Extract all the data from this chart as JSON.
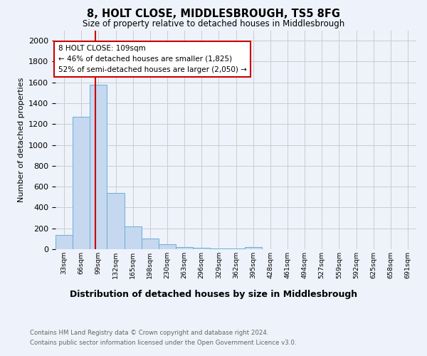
{
  "title": "8, HOLT CLOSE, MIDDLESBROUGH, TS5 8FG",
  "subtitle": "Size of property relative to detached houses in Middlesbrough",
  "xlabel": "Distribution of detached houses by size in Middlesbrough",
  "ylabel": "Number of detached properties",
  "categories": [
    "33sqm",
    "66sqm",
    "99sqm",
    "132sqm",
    "165sqm",
    "198sqm",
    "230sqm",
    "263sqm",
    "296sqm",
    "329sqm",
    "362sqm",
    "395sqm",
    "428sqm",
    "461sqm",
    "494sqm",
    "527sqm",
    "559sqm",
    "592sqm",
    "625sqm",
    "658sqm",
    "691sqm"
  ],
  "values": [
    140,
    1270,
    1580,
    540,
    220,
    100,
    50,
    20,
    15,
    10,
    5,
    20,
    0,
    0,
    0,
    0,
    0,
    0,
    0,
    0,
    0
  ],
  "bar_color": "#c5d8ef",
  "bar_edgecolor": "#6aafd6",
  "annotation_text": "8 HOLT CLOSE: 109sqm\n← 46% of detached houses are smaller (1,825)\n52% of semi-detached houses are larger (2,050) →",
  "annotation_box_color": "#ffffff",
  "annotation_box_edgecolor": "#cc0000",
  "ylim": [
    0,
    2100
  ],
  "yticks": [
    0,
    200,
    400,
    600,
    800,
    1000,
    1200,
    1400,
    1600,
    1800,
    2000
  ],
  "grid_color": "#cccccc",
  "bg_color": "#eef2fa",
  "footer_line1": "Contains HM Land Registry data © Crown copyright and database right 2024.",
  "footer_line2": "Contains public sector information licensed under the Open Government Licence v3.0."
}
